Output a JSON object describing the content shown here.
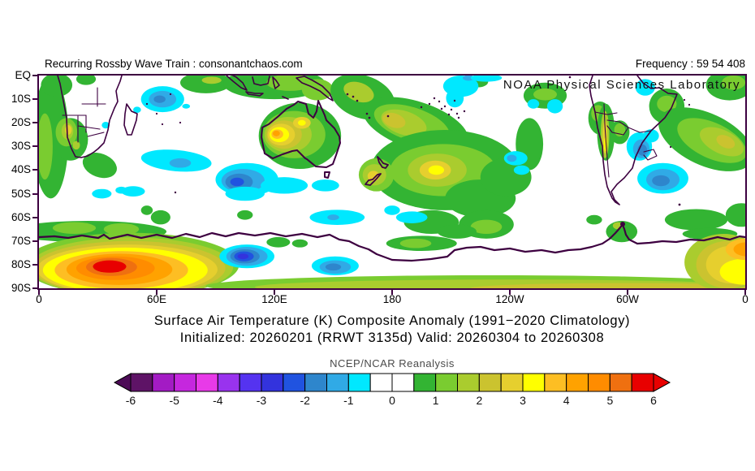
{
  "header": {
    "left": "Recurring Rossby Wave Train : consonantchaos.com",
    "right": "Frequency : 59 54 408"
  },
  "map_overlay": {
    "credit": "NOAA Physical Sciences Laboratory"
  },
  "chart_data": {
    "type": "filled_contour_map",
    "title": "Surface Air Temperature (K) Composite Anomaly (1991−2020 Climatology)",
    "subtitle": "Initialized: 20260201 (RRWT 3135d) Valid: 20260304 to 20260308",
    "colorbar_title": "NCEP/NCAR Reanalysis",
    "units": "K",
    "lon_range_deg_east": [
      0,
      360
    ],
    "lat_range": [
      "EQ",
      "90S"
    ],
    "x_ticks": [
      "0",
      "60E",
      "120E",
      "180",
      "120W",
      "60W",
      "0"
    ],
    "y_ticks": [
      "EQ",
      "10S",
      "20S",
      "30S",
      "40S",
      "50S",
      "60S",
      "70S",
      "80S",
      "90S"
    ],
    "coast_color": "#3d0040",
    "colorbar": {
      "ticks": [
        -6,
        -5,
        -4,
        -3,
        -2,
        -1,
        0,
        1,
        2,
        3,
        4,
        5,
        6
      ],
      "bin_width": 0.5,
      "under_color": "#4d0b57",
      "over_color": "#e80000",
      "bins": [
        {
          "from": -6.0,
          "to": -5.5,
          "color": "#5e1366"
        },
        {
          "from": -5.5,
          "to": -5.0,
          "color": "#a31bc4"
        },
        {
          "from": -5.0,
          "to": -4.5,
          "color": "#c527de"
        },
        {
          "from": -4.5,
          "to": -4.0,
          "color": "#e83ae8"
        },
        {
          "from": -4.0,
          "to": -3.5,
          "color": "#9933ee"
        },
        {
          "from": -3.5,
          "to": -3.0,
          "color": "#5533f0"
        },
        {
          "from": -3.0,
          "to": -2.5,
          "color": "#3333dd"
        },
        {
          "from": -2.5,
          "to": -2.0,
          "color": "#2053e0"
        },
        {
          "from": -2.0,
          "to": -1.5,
          "color": "#2e86cc"
        },
        {
          "from": -1.5,
          "to": -1.0,
          "color": "#30aae6"
        },
        {
          "from": -1.0,
          "to": -0.5,
          "color": "#00e8ff"
        },
        {
          "from": -0.5,
          "to": 0.0,
          "color": "#ffffff"
        },
        {
          "from": 0.0,
          "to": 0.5,
          "color": "#ffffff"
        },
        {
          "from": 0.5,
          "to": 1.0,
          "color": "#33b433"
        },
        {
          "from": 1.0,
          "to": 1.5,
          "color": "#7acc30"
        },
        {
          "from": 1.5,
          "to": 2.0,
          "color": "#aacc2e"
        },
        {
          "from": 2.0,
          "to": 2.5,
          "color": "#cbc32f"
        },
        {
          "from": 2.5,
          "to": 3.0,
          "color": "#e6cf2e"
        },
        {
          "from": 3.0,
          "to": 3.5,
          "color": "#ffff00"
        },
        {
          "from": 3.5,
          "to": 4.0,
          "color": "#fdbe23"
        },
        {
          "from": 4.0,
          "to": 4.5,
          "color": "#ffa200"
        },
        {
          "from": 4.5,
          "to": 5.0,
          "color": "#ff8c00"
        },
        {
          "from": 5.0,
          "to": 5.5,
          "color": "#ef7010"
        },
        {
          "from": 5.5,
          "to": 6.0,
          "color": "#e80000"
        }
      ]
    },
    "features_note": "anomaly blobs: [lonE, latS, rx_deg, ry_deg, value_K, rot_deg?]",
    "features": [
      [
        6,
        26,
        9,
        26,
        0.75
      ],
      [
        3,
        30,
        4,
        14,
        1.25
      ],
      [
        16,
        27,
        9,
        9,
        0.75
      ],
      [
        9,
        4,
        8,
        5,
        0.75
      ],
      [
        24,
        1.5,
        5,
        2.5,
        0.75
      ],
      [
        31,
        38,
        9,
        5,
        0.75,
        20
      ],
      [
        14,
        24,
        5.5,
        6,
        1.25
      ],
      [
        14.5,
        23.5,
        3,
        3.5,
        1.75
      ],
      [
        15,
        23,
        1.7,
        2,
        2.75
      ],
      [
        19,
        29.5,
        1.9,
        1.8,
        1.75
      ],
      [
        85,
        3,
        13,
        4.5,
        0.75
      ],
      [
        88,
        2,
        5,
        1.5,
        1.75
      ],
      [
        120,
        3.5,
        26,
        6.5,
        0.75
      ],
      [
        128,
        3,
        12,
        3.5,
        1.25
      ],
      [
        142,
        6,
        8,
        4.5,
        1.25
      ],
      [
        165,
        9,
        17,
        9,
        0.75,
        20
      ],
      [
        163,
        7,
        8,
        4,
        1.75,
        20
      ],
      [
        192,
        21,
        28,
        10,
        0.75,
        18
      ],
      [
        190,
        20.5,
        20,
        7,
        1.25,
        18
      ],
      [
        186,
        20,
        12,
        5,
        1.75,
        18
      ],
      [
        181,
        19,
        6,
        3,
        2.25,
        18
      ],
      [
        207,
        40,
        38,
        17,
        0.75
      ],
      [
        206,
        40,
        27,
        11,
        1.25
      ],
      [
        203,
        40,
        15,
        7,
        1.75
      ],
      [
        202,
        40,
        8,
        4,
        2.75
      ],
      [
        202.5,
        40,
        4,
        2,
        3.25
      ],
      [
        225,
        52,
        18,
        8,
        0.75
      ],
      [
        238,
        43,
        13,
        8,
        0.75
      ],
      [
        250,
        29,
        7,
        11,
        0.75
      ],
      [
        224,
        2.5,
        5,
        2.5,
        0.75
      ],
      [
        258,
        8.5,
        11,
        5.5,
        0.75
      ],
      [
        258,
        8,
        6,
        2.5,
        1.25
      ],
      [
        286,
        18,
        6,
        7,
        0.75
      ],
      [
        285,
        16,
        3.5,
        3.5,
        1.25
      ],
      [
        289,
        24,
        4.5,
        12,
        0.75
      ],
      [
        288.5,
        25,
        2.2,
        10,
        1.75
      ],
      [
        288.5,
        26,
        1.2,
        7,
        2.75
      ],
      [
        288.8,
        29,
        0.8,
        3,
        3.25
      ],
      [
        296,
        24,
        5,
        5,
        0.75
      ],
      [
        296,
        23,
        2.8,
        2.8,
        1.25
      ],
      [
        320,
        13,
        9,
        7.5,
        0.75
      ],
      [
        320,
        12,
        5,
        3.5,
        1.25
      ],
      [
        340,
        27,
        26,
        11,
        0.75,
        25
      ],
      [
        343,
        27.5,
        19,
        7.5,
        1.25,
        25
      ],
      [
        348,
        28,
        12,
        5,
        1.75,
        25
      ],
      [
        350,
        28,
        5,
        2.5,
        2.25,
        25
      ],
      [
        352,
        4,
        12,
        6.5,
        0.75
      ],
      [
        354,
        3,
        6,
        3,
        1.25
      ],
      [
        358,
        59,
        8,
        5,
        0.75
      ],
      [
        335,
        61,
        16,
        4.5,
        0.75
      ],
      [
        342,
        67,
        14,
        2.5,
        0.75
      ],
      [
        297,
        66,
        8,
        4.5,
        0.75
      ],
      [
        295,
        63.5,
        2.5,
        1.5,
        1.75
      ],
      [
        283,
        61,
        4,
        2,
        0.75
      ],
      [
        195,
        71,
        18,
        3.2,
        0.75
      ],
      [
        192,
        71,
        8,
        2,
        1.25
      ],
      [
        200,
        62,
        14,
        5,
        0.75
      ],
      [
        228,
        63,
        14,
        6,
        0.75
      ],
      [
        228,
        64,
        8,
        3,
        1.25
      ],
      [
        213,
        66,
        10,
        3,
        0.75
      ],
      [
        62,
        60,
        5,
        3,
        0.75
      ],
      [
        55,
        57,
        3,
        2,
        0.75
      ],
      [
        105,
        59,
        4,
        2,
        0.75
      ],
      [
        122,
        70.5,
        6,
        2.2,
        0.75
      ],
      [
        133,
        71,
        4,
        1.7,
        0.75
      ],
      [
        25,
        66,
        40,
        4.5,
        0.75
      ],
      [
        18,
        64.5,
        11,
        2.5,
        1.25
      ],
      [
        42,
        65,
        9,
        2.5,
        1.25
      ],
      [
        133,
        25.5,
        21,
        14,
        0.75
      ],
      [
        130,
        25,
        16,
        10,
        1.25
      ],
      [
        127,
        25,
        12,
        7.5,
        1.75
      ],
      [
        125,
        25,
        9,
        6,
        2.25
      ],
      [
        123.5,
        25,
        7,
        4.6,
        2.75
      ],
      [
        122.5,
        25,
        5,
        3.2,
        3.25
      ],
      [
        121.5,
        24.8,
        3,
        2,
        3.75
      ],
      [
        121,
        24.5,
        1.8,
        1.2,
        4.25
      ],
      [
        134,
        20,
        4.5,
        2.5,
        2.75
      ],
      [
        134,
        20,
        2,
        1.2,
        3.25
      ],
      [
        172,
        42,
        9,
        7,
        1.25
      ],
      [
        171,
        42,
        6,
        4.5,
        1.75
      ],
      [
        170.5,
        42.5,
        3,
        2.2,
        2.75
      ],
      [
        47,
        80,
        55,
        13.5,
        1.25
      ],
      [
        47,
        81,
        52,
        12.5,
        1.75
      ],
      [
        46,
        81.5,
        49,
        11.5,
        2.25
      ],
      [
        45,
        82,
        46,
        10.5,
        2.75
      ],
      [
        44,
        82.3,
        42,
        9.5,
        3.25
      ],
      [
        42,
        82.3,
        34,
        8,
        3.75
      ],
      [
        41,
        82,
        27,
        6.6,
        4.25
      ],
      [
        39,
        81.5,
        20,
        5,
        4.75
      ],
      [
        37,
        81,
        13,
        3.8,
        5.25
      ],
      [
        36,
        80.8,
        8.5,
        2.6,
        5.75
      ],
      [
        230,
        89,
        145,
        4.5,
        1.25
      ],
      [
        240,
        89.5,
        130,
        3.2,
        1.75
      ],
      [
        300,
        90,
        80,
        2.2,
        2.25
      ],
      [
        349,
        79,
        20,
        12,
        1.75
      ],
      [
        351,
        80,
        16,
        10,
        2.25
      ],
      [
        353,
        80,
        13,
        8,
        2.75
      ],
      [
        359,
        83,
        12,
        5.5,
        3.25
      ],
      [
        360,
        73.5,
        10,
        4.5,
        3.75
      ],
      [
        361,
        73.5,
        7,
        3,
        4.25
      ],
      [
        63,
        10,
        11,
        5.5,
        -0.75
      ],
      [
        63,
        10,
        7,
        3.5,
        -1.25
      ],
      [
        61.5,
        10,
        3,
        1.6,
        -1.75
      ],
      [
        50,
        14.5,
        2,
        1.3,
        -0.75
      ],
      [
        75,
        13,
        2,
        1,
        -0.75
      ],
      [
        34,
        21,
        2,
        1.4,
        -0.75
      ],
      [
        70,
        36,
        18,
        4.5,
        -0.75,
        5
      ],
      [
        72,
        37,
        5.5,
        2,
        -1.25
      ],
      [
        48,
        49,
        6,
        2.2,
        -0.75
      ],
      [
        32,
        50,
        5,
        2,
        -0.75
      ],
      [
        42,
        48.5,
        3,
        1.5,
        -0.75
      ],
      [
        106,
        44,
        16,
        7,
        -0.75
      ],
      [
        104,
        44.5,
        11,
        5,
        -1.25
      ],
      [
        102,
        45,
        7,
        3.5,
        -1.75
      ],
      [
        101,
        45,
        3.5,
        1.8,
        -2.25
      ],
      [
        105,
        50,
        10,
        3,
        -0.75
      ],
      [
        125,
        46.5,
        12,
        3.5,
        -0.75
      ],
      [
        146,
        46.5,
        7,
        2.5,
        -0.75
      ],
      [
        215,
        4.5,
        9,
        4.5,
        -0.75
      ],
      [
        212,
        9.5,
        4.5,
        4,
        -0.75
      ],
      [
        219,
        1,
        3,
        1.2,
        -1.25
      ],
      [
        228,
        1,
        8,
        1.6,
        -0.75
      ],
      [
        243,
        35,
        6,
        3,
        -0.75
      ],
      [
        241,
        35,
        2.5,
        1.5,
        -1.25
      ],
      [
        246,
        40,
        4,
        2,
        -0.75
      ],
      [
        263,
        13,
        4,
        3,
        -0.75
      ],
      [
        252,
        12,
        3,
        2,
        -0.75
      ],
      [
        309,
        5,
        5,
        3.5,
        -0.75
      ],
      [
        306,
        30,
        6.5,
        6,
        -0.75
      ],
      [
        307,
        31,
        4.2,
        4,
        -1.25
      ],
      [
        307.5,
        31.5,
        2.4,
        2.4,
        -1.75
      ],
      [
        312,
        25.5,
        4,
        2.8,
        -0.75
      ],
      [
        318,
        43.5,
        13,
        6.5,
        -0.75
      ],
      [
        318,
        44,
        8.5,
        4.5,
        -1.25
      ],
      [
        317,
        44.5,
        4.5,
        2.3,
        -1.75
      ],
      [
        152,
        60,
        14,
        3.2,
        -0.75
      ],
      [
        150,
        60,
        3,
        1.2,
        -1.25
      ],
      [
        190,
        60,
        8,
        2.5,
        -0.75
      ],
      [
        180,
        57,
        4,
        2,
        -0.75
      ],
      [
        106,
        76.5,
        14,
        5,
        -0.75
      ],
      [
        106,
        76.5,
        10.5,
        4,
        -1.25
      ],
      [
        105,
        76.5,
        7.5,
        3,
        -1.75
      ],
      [
        104.5,
        76.5,
        5,
        2.1,
        -2.25
      ],
      [
        104,
        76.5,
        2.8,
        1.2,
        -2.75
      ],
      [
        151,
        80.5,
        12,
        4,
        -0.75
      ],
      [
        151,
        81,
        8,
        2.8,
        -1.25
      ],
      [
        150,
        81,
        4,
        1.5,
        -1.75
      ]
    ]
  }
}
